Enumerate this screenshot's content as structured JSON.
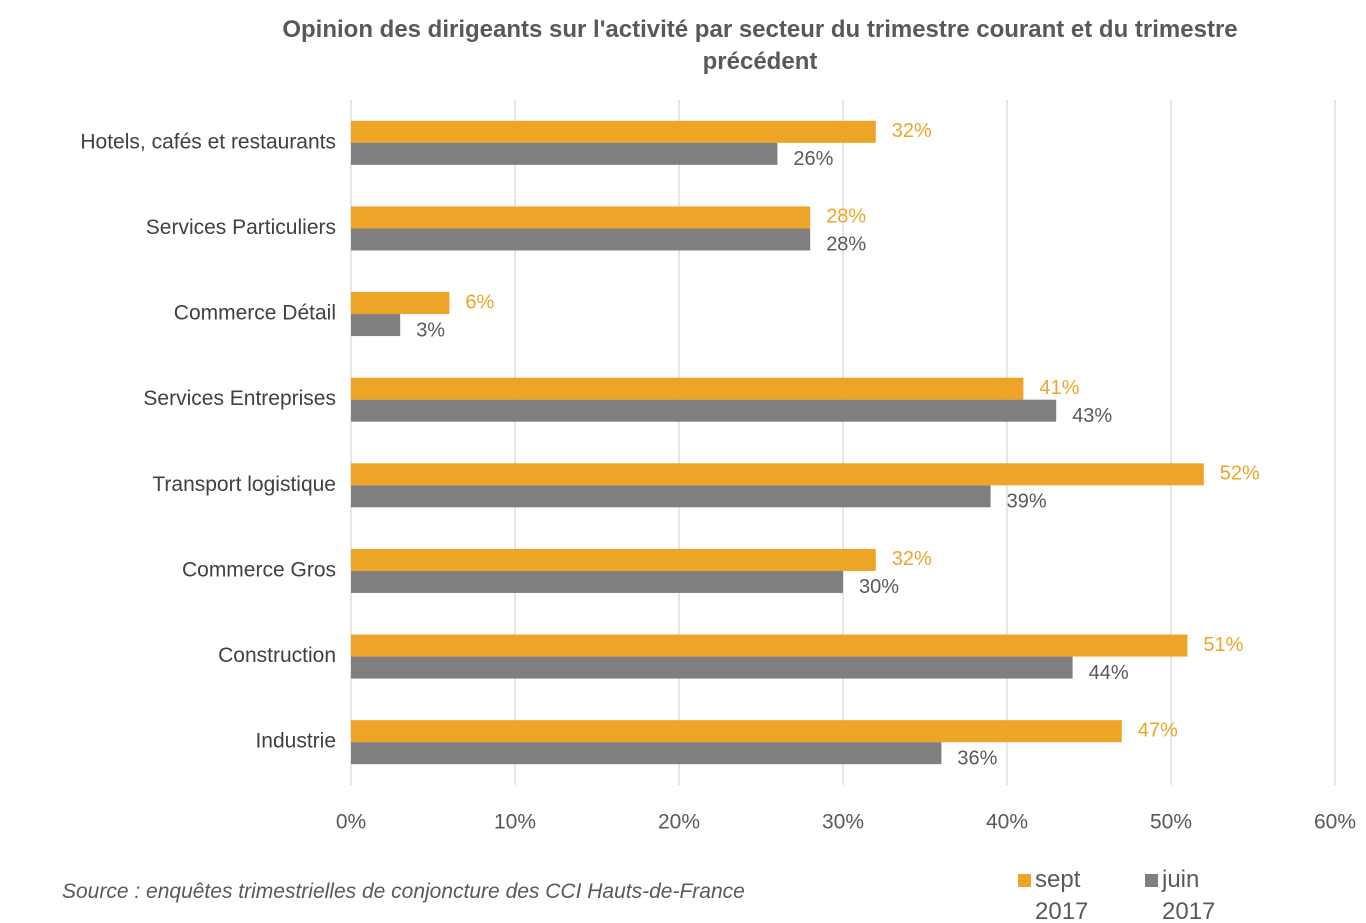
{
  "chart_data": {
    "type": "hbar",
    "title": "Opinion des dirigeants sur l'activité par secteur du trimestre courant et du trimestre précédent",
    "categories": [
      "Hotels, cafés et restaurants",
      "Services Particuliers",
      "Commerce Détail",
      "Services Entreprises",
      "Transport logistique",
      "Commerce Gros",
      "Construction",
      "Industrie"
    ],
    "series": [
      {
        "name": "sept 2017",
        "color": "#eea427",
        "values": [
          32,
          28,
          6,
          41,
          52,
          32,
          51,
          47
        ],
        "value_labels": [
          "32%",
          "28%",
          "6%",
          "41%",
          "52%",
          "32%",
          "51%",
          "47%"
        ]
      },
      {
        "name": "juin 2017",
        "color": "#7f7f7f",
        "values": [
          26,
          28,
          3,
          43,
          39,
          30,
          44,
          36
        ],
        "value_labels": [
          "26%",
          "28%",
          "3%",
          "43%",
          "39%",
          "30%",
          "44%",
          "36%"
        ]
      }
    ],
    "xlim": [
      0,
      60
    ],
    "xticks": [
      {
        "value": 0,
        "label": "0%"
      },
      {
        "value": 10,
        "label": "10%"
      },
      {
        "value": 20,
        "label": "20%"
      },
      {
        "value": 30,
        "label": "30%"
      },
      {
        "value": 40,
        "label": "40%"
      },
      {
        "value": 50,
        "label": "50%"
      },
      {
        "value": 60,
        "label": "60%"
      }
    ],
    "grid": true,
    "legend": "bottom-right",
    "note": "Source : enquêtes trimestrielles de conjoncture des CCI Hauts-de-France"
  }
}
